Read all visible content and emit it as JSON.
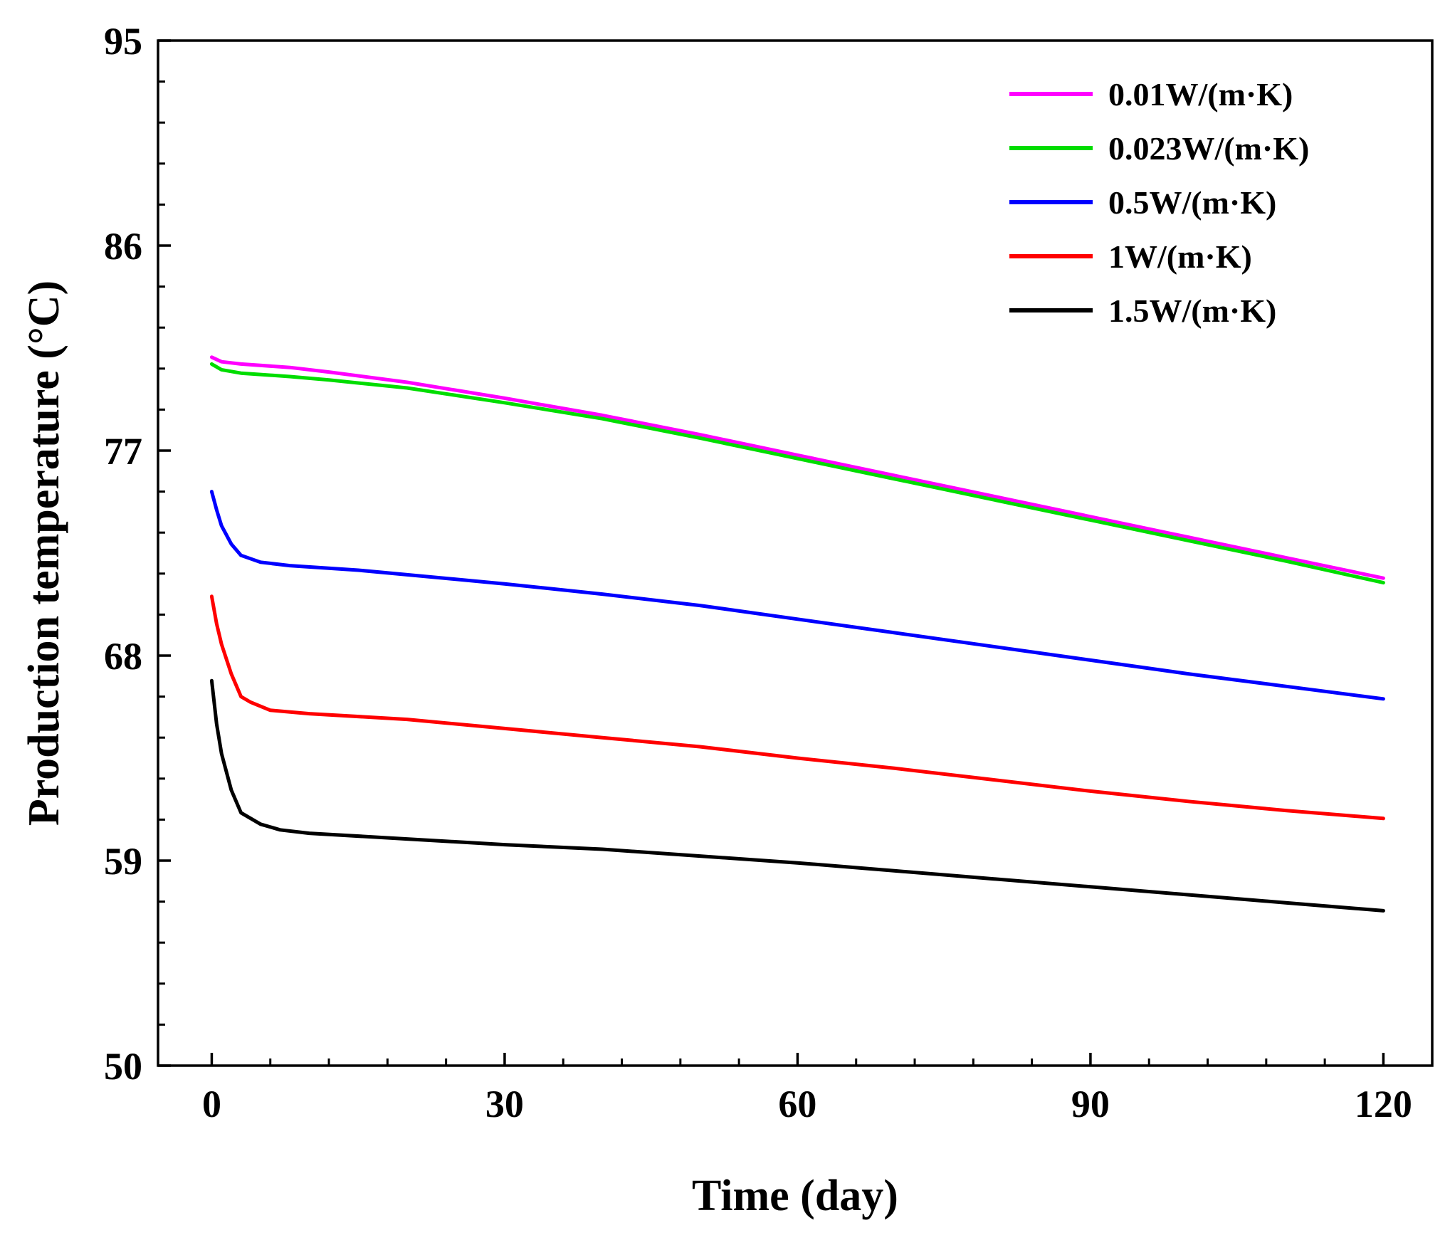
{
  "chart_data": {
    "type": "line",
    "title": "",
    "xlabel": "Time (day)",
    "ylabel": "Production temperature (°C)",
    "xlim": [
      -5.5,
      125
    ],
    "ylim": [
      50,
      95
    ],
    "xticks": [
      0,
      30,
      60,
      90,
      120
    ],
    "yticks": [
      50,
      59,
      68,
      77,
      86,
      95
    ],
    "x_minor_step": 6,
    "y_minor_step": 1.8,
    "grid": false,
    "legend_position": "top-right",
    "series": [
      {
        "name": "0.01W/(m·K)",
        "color": "#ff00ff",
        "points": [
          [
            0,
            81.1
          ],
          [
            1,
            80.9
          ],
          [
            3,
            80.8
          ],
          [
            8,
            80.65
          ],
          [
            12,
            80.45
          ],
          [
            20,
            80.0
          ],
          [
            30,
            79.3
          ],
          [
            40,
            78.55
          ],
          [
            50,
            77.7
          ],
          [
            60,
            76.8
          ],
          [
            70,
            75.9
          ],
          [
            80,
            75.0
          ],
          [
            90,
            74.1
          ],
          [
            100,
            73.2
          ],
          [
            110,
            72.3
          ],
          [
            120,
            71.4
          ]
        ]
      },
      {
        "name": "0.023W/(m·K)",
        "color": "#00dd00",
        "points": [
          [
            0,
            80.8
          ],
          [
            1,
            80.55
          ],
          [
            3,
            80.4
          ],
          [
            8,
            80.25
          ],
          [
            12,
            80.1
          ],
          [
            20,
            79.75
          ],
          [
            30,
            79.1
          ],
          [
            40,
            78.4
          ],
          [
            50,
            77.55
          ],
          [
            60,
            76.65
          ],
          [
            70,
            75.75
          ],
          [
            80,
            74.85
          ],
          [
            90,
            73.95
          ],
          [
            100,
            73.05
          ],
          [
            110,
            72.15
          ],
          [
            120,
            71.2
          ]
        ]
      },
      {
        "name": "0.5W/(m·K)",
        "color": "#0000ff",
        "points": [
          [
            0,
            75.2
          ],
          [
            0.5,
            74.4
          ],
          [
            1,
            73.7
          ],
          [
            2,
            72.9
          ],
          [
            3,
            72.4
          ],
          [
            5,
            72.1
          ],
          [
            8,
            71.95
          ],
          [
            15,
            71.75
          ],
          [
            20,
            71.55
          ],
          [
            30,
            71.15
          ],
          [
            40,
            70.7
          ],
          [
            50,
            70.2
          ],
          [
            60,
            69.6
          ],
          [
            70,
            69.0
          ],
          [
            80,
            68.4
          ],
          [
            90,
            67.8
          ],
          [
            100,
            67.2
          ],
          [
            110,
            66.65
          ],
          [
            120,
            66.1
          ]
        ]
      },
      {
        "name": "1W/(m·K)",
        "color": "#ff0000",
        "points": [
          [
            0,
            70.6
          ],
          [
            0.5,
            69.4
          ],
          [
            1,
            68.5
          ],
          [
            2,
            67.2
          ],
          [
            3,
            66.2
          ],
          [
            4,
            65.95
          ],
          [
            6,
            65.6
          ],
          [
            10,
            65.45
          ],
          [
            20,
            65.2
          ],
          [
            30,
            64.8
          ],
          [
            40,
            64.4
          ],
          [
            50,
            64.0
          ],
          [
            60,
            63.5
          ],
          [
            70,
            63.05
          ],
          [
            80,
            62.55
          ],
          [
            90,
            62.05
          ],
          [
            100,
            61.6
          ],
          [
            110,
            61.2
          ],
          [
            120,
            60.85
          ]
        ]
      },
      {
        "name": "1.5W/(m·K)",
        "color": "#000000",
        "points": [
          [
            0,
            66.9
          ],
          [
            0.5,
            65.0
          ],
          [
            1,
            63.7
          ],
          [
            2,
            62.1
          ],
          [
            3,
            61.1
          ],
          [
            5,
            60.6
          ],
          [
            7,
            60.35
          ],
          [
            10,
            60.2
          ],
          [
            20,
            59.95
          ],
          [
            30,
            59.7
          ],
          [
            40,
            59.5
          ],
          [
            50,
            59.2
          ],
          [
            60,
            58.9
          ],
          [
            70,
            58.55
          ],
          [
            80,
            58.2
          ],
          [
            90,
            57.85
          ],
          [
            100,
            57.5
          ],
          [
            110,
            57.15
          ],
          [
            120,
            56.8
          ]
        ]
      }
    ]
  }
}
